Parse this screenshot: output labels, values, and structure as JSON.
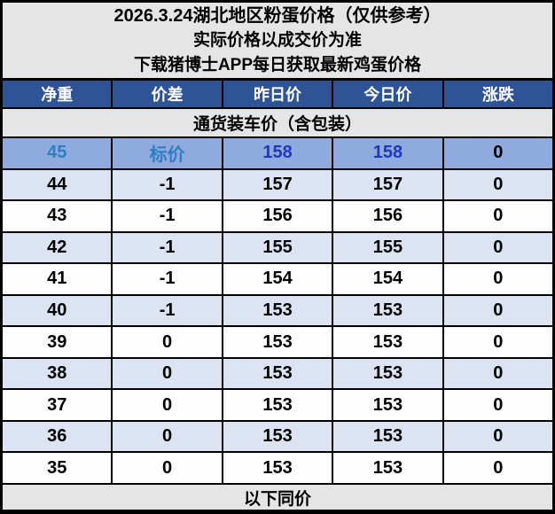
{
  "title": {
    "line1": "2026.3.24湖北地区粉蛋价格（仅供参考）",
    "line2": "实际价格以成交价为准",
    "line3": "下载猪博士APP每日获取最新鸡蛋价格"
  },
  "table": {
    "columns": [
      "净重",
      "价差",
      "昨日价",
      "今日价",
      "涨跌"
    ],
    "section_header": "通货装车价（含包装）",
    "rows": [
      {
        "weight": "45",
        "diff": "标价",
        "yesterday": "158",
        "today": "158",
        "change": "0",
        "highlight": true
      },
      {
        "weight": "44",
        "diff": "-1",
        "yesterday": "157",
        "today": "157",
        "change": "0",
        "highlight": false
      },
      {
        "weight": "43",
        "diff": "-1",
        "yesterday": "156",
        "today": "156",
        "change": "0",
        "highlight": false
      },
      {
        "weight": "42",
        "diff": "-1",
        "yesterday": "155",
        "today": "155",
        "change": "0",
        "highlight": false
      },
      {
        "weight": "41",
        "diff": "-1",
        "yesterday": "154",
        "today": "154",
        "change": "0",
        "highlight": false
      },
      {
        "weight": "40",
        "diff": "-1",
        "yesterday": "153",
        "today": "153",
        "change": "0",
        "highlight": false
      },
      {
        "weight": "39",
        "diff": "0",
        "yesterday": "153",
        "today": "153",
        "change": "0",
        "highlight": false
      },
      {
        "weight": "38",
        "diff": "0",
        "yesterday": "153",
        "today": "153",
        "change": "0",
        "highlight": false
      },
      {
        "weight": "37",
        "diff": "0",
        "yesterday": "153",
        "today": "153",
        "change": "0",
        "highlight": false
      },
      {
        "weight": "36",
        "diff": "0",
        "yesterday": "153",
        "today": "153",
        "change": "0",
        "highlight": false
      },
      {
        "weight": "35",
        "diff": "0",
        "yesterday": "153",
        "today": "153",
        "change": "0",
        "highlight": false
      }
    ],
    "footer": "以下同价"
  },
  "colors": {
    "header_bg": "#2f5496",
    "header_text": "#ffffff",
    "highlight_row_bg": "#8faadc",
    "highlight_label_text": "#2e7fc1",
    "highlight_price_text": "#2038bc",
    "alt_row_bg": "#dce3f2",
    "row_bg": "#fdfdfd",
    "section_bg": "#e6e5e5",
    "border": "#000000",
    "text": "#000000"
  }
}
